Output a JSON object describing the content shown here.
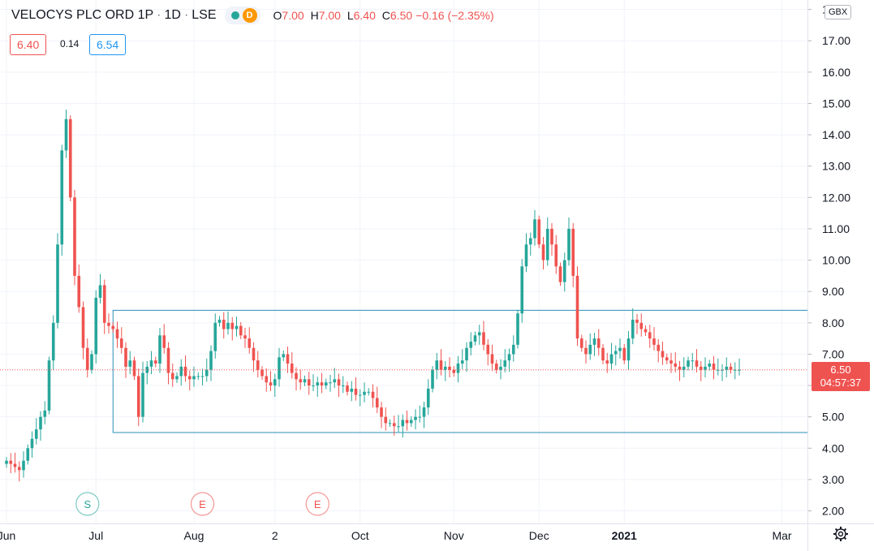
{
  "header": {
    "symbol": "VELOCYS PLC ORD 1P",
    "interval": "1D",
    "exchange": "LSE",
    "status_badge": "D",
    "ohlc": {
      "o_label": "O",
      "o": "7.00",
      "h_label": "H",
      "h": "7.00",
      "l_label": "L",
      "l": "6.40",
      "c_label": "C",
      "c": "6.50"
    },
    "change": "−0.16 (−2.35%)"
  },
  "bid": "6.40",
  "spread": "0.14",
  "ask": "6.54",
  "currency": "GBX",
  "last_price": {
    "value": "6.50",
    "countdown": "04:57:37"
  },
  "colors": {
    "up": "#26a69a",
    "down": "#ef5350",
    "rect": "#2a8fb7",
    "grid": "#f0f3fa"
  },
  "icons": [
    "settings-icon"
  ],
  "chart_data": {
    "type": "candlestick",
    "y_ticks": [
      "2.00",
      "3.00",
      "4.00",
      "5.00",
      "6.00",
      "7.00",
      "8.00",
      "9.00",
      "10.00",
      "11.00",
      "12.00",
      "13.00",
      "14.00",
      "15.00",
      "16.00",
      "17.00",
      "18.00"
    ],
    "ylim": [
      1.6,
      18.3
    ],
    "x_ticks": [
      {
        "label": "Jun",
        "i": 0
      },
      {
        "label": "Jul",
        "i": 21
      },
      {
        "label": "Aug",
        "i": 44
      },
      {
        "label": "2",
        "i": 63
      },
      {
        "label": "Oct",
        "i": 83
      },
      {
        "label": "Nov",
        "i": 105
      },
      {
        "label": "Dec",
        "i": 125
      },
      {
        "label": "2021",
        "i": 145
      },
      {
        "label": "Mar",
        "i": 182
      }
    ],
    "events": [
      {
        "label": "S",
        "i": 19,
        "color": "#26a69a"
      },
      {
        "label": "E",
        "i": 46,
        "color": "#ef5350"
      },
      {
        "label": "E",
        "i": 73,
        "color": "#ef5350"
      }
    ],
    "rectangle": {
      "i_start": 25,
      "i_end": 189,
      "top": 8.4,
      "bottom": 4.5
    },
    "last_value": 6.5,
    "closes": [
      3.6,
      3.5,
      3.4,
      3.3,
      3.6,
      4.0,
      4.3,
      4.6,
      5.0,
      5.2,
      6.8,
      8.0,
      10.5,
      13.5,
      14.5,
      12.0,
      9.5,
      8.5,
      7.2,
      6.5,
      7.0,
      8.8,
      9.2,
      8.0,
      7.9,
      7.8,
      7.5,
      7.2,
      6.6,
      6.8,
      6.3,
      5.0,
      6.4,
      6.6,
      6.8,
      6.7,
      7.6,
      7.2,
      6.4,
      6.2,
      6.3,
      6.6,
      6.3,
      6.2,
      6.3,
      6.3,
      6.3,
      6.5,
      7.1,
      8.0,
      8.1,
      7.8,
      8.0,
      7.8,
      7.9,
      7.6,
      7.5,
      7.2,
      6.8,
      6.5,
      6.3,
      6.1,
      6.0,
      6.2,
      6.9,
      7.0,
      6.7,
      6.4,
      6.2,
      6.1,
      6.2,
      6.0,
      6.0,
      6.1,
      6.0,
      6.1,
      6.1,
      6.2,
      6.0,
      6.0,
      5.8,
      5.9,
      5.7,
      5.7,
      5.8,
      5.8,
      5.6,
      5.3,
      5.0,
      4.8,
      4.8,
      4.7,
      4.7,
      4.9,
      4.8,
      4.9,
      5.0,
      5.0,
      5.3,
      5.9,
      6.5,
      6.8,
      6.5,
      6.6,
      6.5,
      6.4,
      6.7,
      6.8,
      7.2,
      7.4,
      7.6,
      7.7,
      7.3,
      7.0,
      6.7,
      6.5,
      6.6,
      6.8,
      7.0,
      7.3,
      8.3,
      9.8,
      10.5,
      10.7,
      11.3,
      10.5,
      10.0,
      11.0,
      10.5,
      9.8,
      9.3,
      10.0,
      11.0,
      9.5,
      7.5,
      7.2,
      7.0,
      7.3,
      7.5,
      7.2,
      6.8,
      6.7,
      7.0,
      7.1,
      7.2,
      6.8,
      7.5,
      8.1,
      8.0,
      7.8,
      7.7,
      7.5,
      7.3,
      7.1,
      6.9,
      6.8,
      6.7,
      6.6,
      6.5,
      6.6,
      6.8,
      6.8,
      6.6,
      6.5,
      6.6,
      6.7,
      6.5,
      6.5,
      6.5,
      6.6,
      6.5,
      6.5,
      6.5
    ]
  }
}
